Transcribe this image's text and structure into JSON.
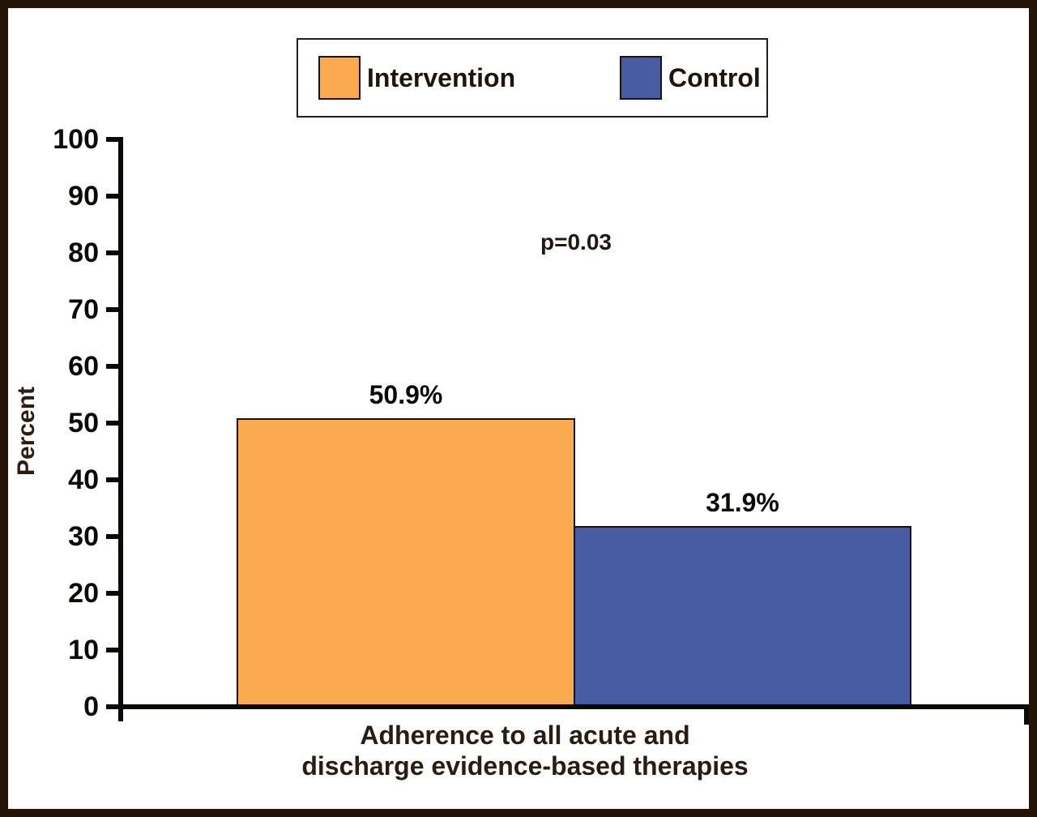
{
  "chart_data": {
    "type": "bar",
    "categories": [
      "Adherence to all acute and discharge evidence-based therapies"
    ],
    "series": [
      {
        "name": "Intervention",
        "values": [
          50.9
        ],
        "color": "#FBAA4F"
      },
      {
        "name": "Control",
        "values": [
          31.9
        ],
        "color": "#475CA3"
      }
    ],
    "value_labels": [
      "50.9%",
      "31.9%"
    ],
    "annotation": "p=0.03",
    "ylabel": "Percent",
    "ylim": [
      0,
      100
    ],
    "ytick_labels": [
      "100",
      "90",
      "80",
      "70",
      "60",
      "50",
      "40",
      "30",
      "20",
      "10",
      "0"
    ],
    "xlabel_line1": "Adherence to all acute and",
    "xlabel_line2": "discharge evidence-based therapies",
    "legend_position": "top",
    "grid": false
  },
  "colors": {
    "frame_border": "#231405",
    "axis": "#0C0A07",
    "dark_text": "#2B1B10"
  }
}
